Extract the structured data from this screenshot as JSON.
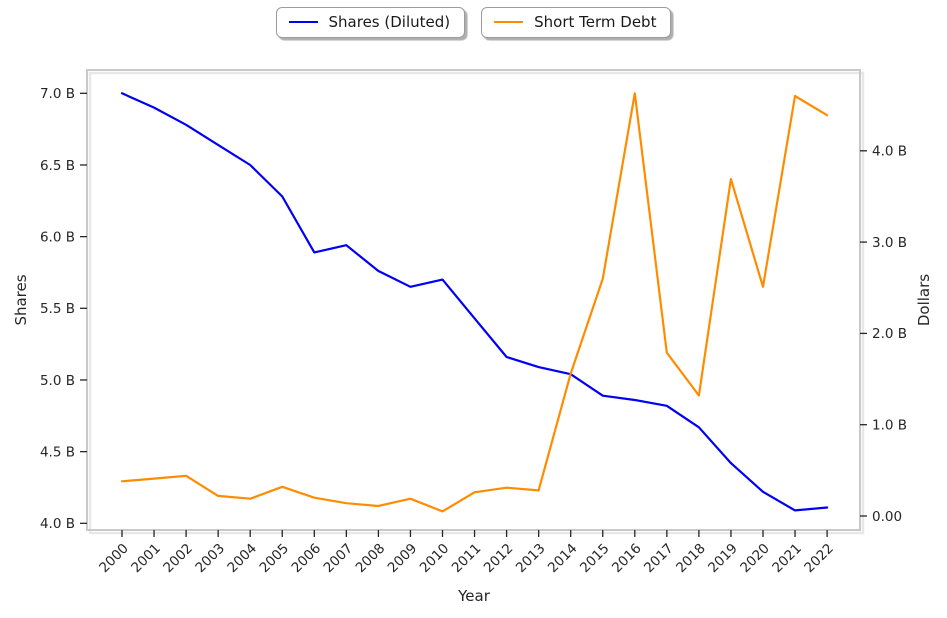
{
  "legend": {
    "items": [
      {
        "label": "Shares (Diluted)",
        "color": "#0000f5"
      },
      {
        "label": "Short Term Debt",
        "color": "#ff8c00"
      }
    ]
  },
  "chart_data": {
    "type": "line",
    "title": "",
    "xlabel": "Year",
    "x": [
      2000,
      2001,
      2002,
      2003,
      2004,
      2005,
      2006,
      2007,
      2008,
      2009,
      2010,
      2011,
      2012,
      2013,
      2014,
      2015,
      2016,
      2017,
      2018,
      2019,
      2020,
      2021,
      2022
    ],
    "series": [
      {
        "name": "Shares (Diluted)",
        "axis": "left",
        "color": "#0000f5",
        "values": [
          7.0,
          6.9,
          6.78,
          6.64,
          6.5,
          6.28,
          5.89,
          5.94,
          5.76,
          5.65,
          5.7,
          5.43,
          5.16,
          5.09,
          5.04,
          4.89,
          4.86,
          4.82,
          4.67,
          4.42,
          4.22,
          4.09,
          4.11
        ]
      },
      {
        "name": "Short Term Debt",
        "axis": "right",
        "color": "#ff8c00",
        "values": [
          0.38,
          0.41,
          0.44,
          0.22,
          0.19,
          0.32,
          0.2,
          0.14,
          0.11,
          0.19,
          0.05,
          0.26,
          0.31,
          0.28,
          1.56,
          2.6,
          4.63,
          1.79,
          1.32,
          3.69,
          2.51,
          4.6,
          4.39
        ]
      }
    ],
    "left_axis": {
      "label": "Shares",
      "tick_labels": [
        "4.0 B",
        "4.5 B",
        "5.0 B",
        "5.5 B",
        "6.0 B",
        "6.5 B",
        "7.0 B"
      ],
      "tick_values": [
        4.0,
        4.5,
        5.0,
        5.5,
        6.0,
        6.5,
        7.0
      ],
      "range": [
        3.95,
        7.05
      ]
    },
    "right_axis": {
      "label": "Dollars",
      "tick_labels": [
        "0.00",
        "1.0 B",
        "2.0 B",
        "3.0 B",
        "4.0 B"
      ],
      "tick_values": [
        0,
        1,
        2,
        3,
        4
      ],
      "range": [
        -0.15,
        4.9
      ]
    },
    "grid": false,
    "legend_position": "top-center"
  }
}
